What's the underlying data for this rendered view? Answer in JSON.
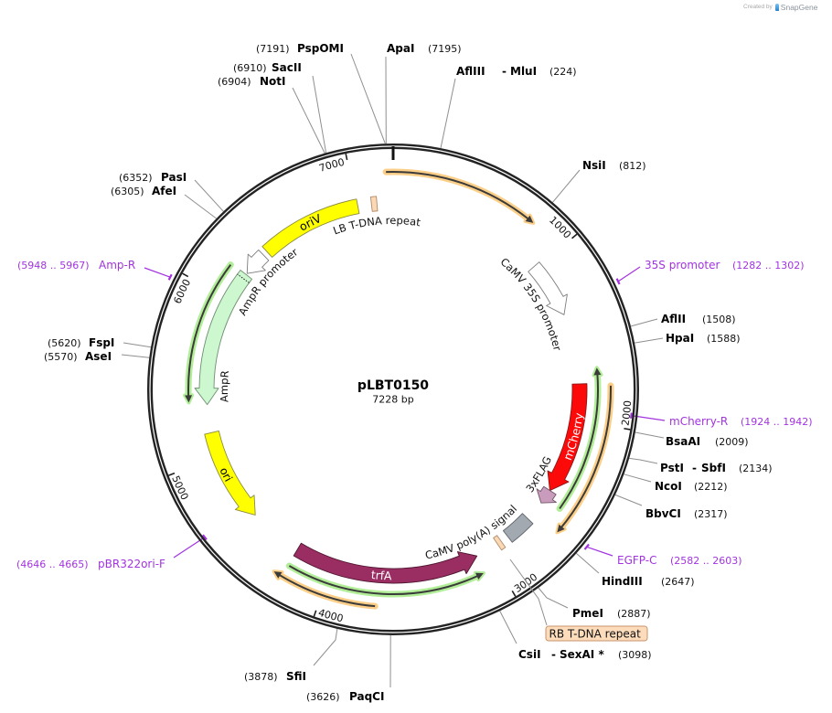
{
  "credit": {
    "prefix": "Created by",
    "brand": "SnapGene"
  },
  "map": {
    "name": "pLBT0150",
    "length_label": "7228 bp",
    "total_bp": 7228
  },
  "colors": {
    "ring": "#232323",
    "tick": "#1e1e1e",
    "enzyme_line": "#8f8f8f",
    "primer": "#a233e0",
    "orf_line": "#3b3b3b",
    "orf_halo_green": "#b2ee98",
    "orf_halo_orange": "#fccf88",
    "callout_fill": "#fcdcbb",
    "callout_border": "#c9956c"
  },
  "ticks": [
    {
      "bp": 1000,
      "label": "1000"
    },
    {
      "bp": 2000,
      "label": "2000"
    },
    {
      "bp": 3000,
      "label": "3000"
    },
    {
      "bp": 4000,
      "label": "4000"
    },
    {
      "bp": 5000,
      "label": "5000"
    },
    {
      "bp": 6000,
      "label": "6000"
    },
    {
      "bp": 7000,
      "label": "7000"
    }
  ],
  "features": [
    {
      "label": "oriV",
      "start": 6375,
      "end": 7009,
      "strand": 0,
      "fill": "#ffff00",
      "stroke": "#8a8a40"
    },
    {
      "label": "LB T-DNA repeat",
      "start": 7094,
      "end": 7128,
      "strand": 0,
      "fill": "#fbd9b5",
      "stroke": "#b08a6c"
    },
    {
      "label": "CaMV 35S promoter",
      "start": 982,
      "end": 1333,
      "strand": 1,
      "fill": "#ffffff",
      "stroke": "#7d7d7d"
    },
    {
      "label": "mCherry",
      "start": 1773,
      "end": 2466,
      "strand": 1,
      "fill": "#fc0a0a",
      "stroke": "#8a1818"
    },
    {
      "label": "3xFLAG",
      "start": 2466,
      "end": 2560,
      "strand": 1,
      "fill": "#c99bbd",
      "stroke": "#6f5566"
    },
    {
      "label": "CaMV poly(A) signal",
      "start": 2687,
      "end": 2853,
      "strand": 0,
      "fill": "#a3a9b1",
      "stroke": "#5f646b"
    },
    {
      "label": "RB T-DNA repeat",
      "start": 2903,
      "end": 2931,
      "strand": 0,
      "fill": "#fbd9b5",
      "stroke": "#b08a6c"
    },
    {
      "label": "trfA",
      "start": 3078,
      "end": 4234,
      "strand": -1,
      "fill": "#9a2e62",
      "stroke": "#4e1530"
    },
    {
      "label": "ori",
      "start": 4571,
      "end": 5152,
      "strand": -1,
      "fill": "#ffff00",
      "stroke": "#8a8a40"
    },
    {
      "label": "AmpR",
      "start": 5327,
      "end": 6184,
      "strand": -1,
      "fill": "#ccf7cf",
      "stroke": "#6f8f72",
      "dotted_divider_bp": 6154
    },
    {
      "label": "AmpR promoter",
      "start": 6193,
      "end": 6345,
      "strand": -1,
      "fill": "#ffffff",
      "stroke": "#7d7d7d"
    }
  ],
  "orfs": [
    {
      "start": 7190,
      "end": 805,
      "strand": 1,
      "halo": "orange"
    },
    {
      "start": 1685,
      "end": 2522,
      "strand": -1,
      "halo": "green"
    },
    {
      "start": 1787,
      "end": 2632,
      "strand": 1,
      "halo": "orange"
    },
    {
      "start": 3088,
      "end": 4226,
      "strand": -1,
      "halo": "green"
    },
    {
      "start": 3710,
      "end": 4281,
      "strand": 1,
      "halo": "orange"
    },
    {
      "start": 5347,
      "end": 6174,
      "strand": -1,
      "halo": "green"
    }
  ],
  "enzymes": [
    {
      "names": [
        "PspOMI"
      ],
      "position": "(7191)",
      "bp": 7191
    },
    {
      "names": [
        "ApaI"
      ],
      "position": "(7195)",
      "bp": 7195
    },
    {
      "names": [
        "SacII"
      ],
      "position": "(6910)",
      "bp": 6910
    },
    {
      "names": [
        "NotI"
      ],
      "position": "(6904)",
      "bp": 6904
    },
    {
      "names": [
        "AflIII",
        "MluI"
      ],
      "separator": "-",
      "position": "(224)",
      "bp": 224
    },
    {
      "names": [
        "NsiI"
      ],
      "position": "(812)",
      "bp": 812
    },
    {
      "names": [
        "AflII"
      ],
      "position": "(1508)",
      "bp": 1508
    },
    {
      "names": [
        "HpaI"
      ],
      "position": "(1588)",
      "bp": 1588
    },
    {
      "names": [
        "BsaAI"
      ],
      "position": "(2009)",
      "bp": 2009
    },
    {
      "names": [
        "PstI",
        "SbfI"
      ],
      "separator": "-",
      "position": "(2134)",
      "bp": 2134
    },
    {
      "names": [
        "NcoI"
      ],
      "position": "(2212)",
      "bp": 2212
    },
    {
      "names": [
        "BbvCI"
      ],
      "position": "(2317)",
      "bp": 2317
    },
    {
      "names": [
        "HindIII"
      ],
      "position": "(2647)",
      "bp": 2647
    },
    {
      "names": [
        "PmeI"
      ],
      "position": "(2887)",
      "bp": 2887
    },
    {
      "names": [
        "CsiI",
        "SexAI *"
      ],
      "separator": "-",
      "position": "(3098)",
      "bp": 3098
    },
    {
      "names": [
        "PaqCI"
      ],
      "position": "(3626)",
      "bp": 3626
    },
    {
      "names": [
        "SfiI"
      ],
      "position": "(3878)",
      "bp": 3878
    },
    {
      "names": [
        "AseI"
      ],
      "position": "(5570)",
      "bp": 5570
    },
    {
      "names": [
        "FspI"
      ],
      "position": "(5620)",
      "bp": 5620
    },
    {
      "names": [
        "AfeI"
      ],
      "position": "(6305)",
      "bp": 6305
    },
    {
      "names": [
        "PasI"
      ],
      "position": "(6352)",
      "bp": 6352
    }
  ],
  "primers": [
    {
      "name": "35S promoter",
      "range": "(1282 .. 1302)",
      "start": 1282,
      "end": 1302,
      "strand": 1
    },
    {
      "name": "mCherry-R",
      "range": "(1924 .. 1942)",
      "start": 1924,
      "end": 1942,
      "strand": -1
    },
    {
      "name": "EGFP-C",
      "range": "(2582 .. 2603)",
      "start": 2582,
      "end": 2603,
      "strand": 1
    },
    {
      "name": "pBR322ori-F",
      "range": "(4646 .. 4665)",
      "start": 4646,
      "end": 4665,
      "strand": -1
    },
    {
      "name": "Amp-R",
      "range": "(5948 .. 5967)",
      "start": 5948,
      "end": 5967,
      "strand": 1
    }
  ]
}
